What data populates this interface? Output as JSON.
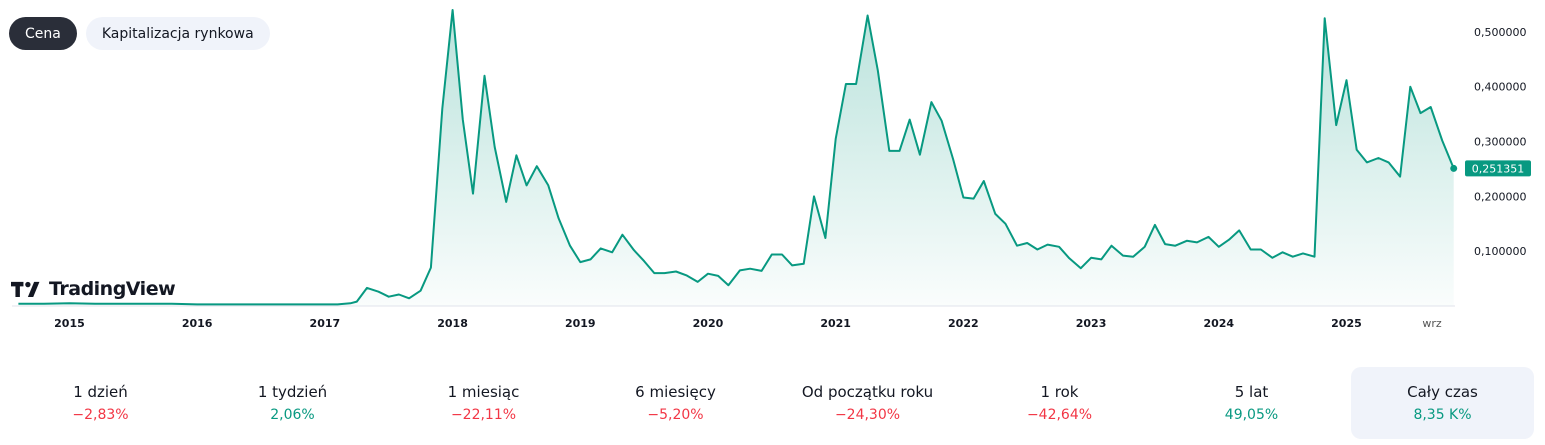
{
  "tabs": [
    {
      "label": "Cena",
      "active": true
    },
    {
      "label": "Kapitalizacja rynkowa",
      "active": false
    }
  ],
  "logo": {
    "text": "TradingView",
    "icon": "tradingview-logo-icon"
  },
  "colors": {
    "line": "#089981",
    "negative": "#f23645",
    "positive": "#089981",
    "price_badge": "#089981"
  },
  "chart_data": {
    "type": "area",
    "x_ticks": [
      "2015",
      "2016",
      "2017",
      "2018",
      "2019",
      "2020",
      "2021",
      "2022",
      "2023",
      "2024",
      "2025",
      "wrz"
    ],
    "y_ticks": [
      "0,100000",
      "0,200000",
      "0,300000",
      "0,400000",
      "0,500000"
    ],
    "ylim": [
      0,
      0.54
    ],
    "xlim": [
      2014.55,
      2025.85
    ],
    "current_value_label": "0,251351",
    "grid": false,
    "points": [
      [
        2014.6,
        0.004
      ],
      [
        2014.8,
        0.004
      ],
      [
        2015.0,
        0.005
      ],
      [
        2015.2,
        0.004
      ],
      [
        2015.5,
        0.004
      ],
      [
        2015.8,
        0.004
      ],
      [
        2016.0,
        0.003
      ],
      [
        2016.3,
        0.003
      ],
      [
        2016.6,
        0.003
      ],
      [
        2016.9,
        0.003
      ],
      [
        2017.1,
        0.003
      ],
      [
        2017.2,
        0.005
      ],
      [
        2017.25,
        0.008
      ],
      [
        2017.33,
        0.033
      ],
      [
        2017.42,
        0.026
      ],
      [
        2017.5,
        0.017
      ],
      [
        2017.58,
        0.021
      ],
      [
        2017.66,
        0.014
      ],
      [
        2017.75,
        0.028
      ],
      [
        2017.83,
        0.07
      ],
      [
        2017.92,
        0.36
      ],
      [
        2018.0,
        0.54
      ],
      [
        2018.08,
        0.34
      ],
      [
        2018.16,
        0.205
      ],
      [
        2018.25,
        0.42
      ],
      [
        2018.33,
        0.29
      ],
      [
        2018.42,
        0.19
      ],
      [
        2018.5,
        0.275
      ],
      [
        2018.58,
        0.22
      ],
      [
        2018.66,
        0.255
      ],
      [
        2018.75,
        0.22
      ],
      [
        2018.83,
        0.16
      ],
      [
        2018.92,
        0.11
      ],
      [
        2019.0,
        0.08
      ],
      [
        2019.08,
        0.085
      ],
      [
        2019.16,
        0.105
      ],
      [
        2019.25,
        0.098
      ],
      [
        2019.33,
        0.13
      ],
      [
        2019.42,
        0.102
      ],
      [
        2019.5,
        0.082
      ],
      [
        2019.58,
        0.06
      ],
      [
        2019.66,
        0.06
      ],
      [
        2019.75,
        0.063
      ],
      [
        2019.83,
        0.056
      ],
      [
        2019.92,
        0.044
      ],
      [
        2020.0,
        0.059
      ],
      [
        2020.08,
        0.055
      ],
      [
        2020.16,
        0.038
      ],
      [
        2020.25,
        0.065
      ],
      [
        2020.33,
        0.068
      ],
      [
        2020.42,
        0.064
      ],
      [
        2020.5,
        0.094
      ],
      [
        2020.58,
        0.094
      ],
      [
        2020.66,
        0.074
      ],
      [
        2020.75,
        0.077
      ],
      [
        2020.83,
        0.2
      ],
      [
        2020.92,
        0.124
      ],
      [
        2021.0,
        0.305
      ],
      [
        2021.08,
        0.405
      ],
      [
        2021.16,
        0.405
      ],
      [
        2021.25,
        0.53
      ],
      [
        2021.33,
        0.43
      ],
      [
        2021.42,
        0.283
      ],
      [
        2021.5,
        0.283
      ],
      [
        2021.58,
        0.34
      ],
      [
        2021.66,
        0.276
      ],
      [
        2021.75,
        0.372
      ],
      [
        2021.83,
        0.338
      ],
      [
        2021.92,
        0.268
      ],
      [
        2022.0,
        0.198
      ],
      [
        2022.08,
        0.196
      ],
      [
        2022.16,
        0.228
      ],
      [
        2022.25,
        0.168
      ],
      [
        2022.33,
        0.15
      ],
      [
        2022.42,
        0.11
      ],
      [
        2022.5,
        0.115
      ],
      [
        2022.58,
        0.103
      ],
      [
        2022.66,
        0.112
      ],
      [
        2022.75,
        0.108
      ],
      [
        2022.83,
        0.087
      ],
      [
        2022.92,
        0.069
      ],
      [
        2023.0,
        0.088
      ],
      [
        2023.08,
        0.085
      ],
      [
        2023.16,
        0.11
      ],
      [
        2023.25,
        0.092
      ],
      [
        2023.33,
        0.09
      ],
      [
        2023.42,
        0.108
      ],
      [
        2023.5,
        0.148
      ],
      [
        2023.58,
        0.113
      ],
      [
        2023.66,
        0.11
      ],
      [
        2023.75,
        0.119
      ],
      [
        2023.83,
        0.116
      ],
      [
        2023.92,
        0.126
      ],
      [
        2024.0,
        0.108
      ],
      [
        2024.08,
        0.121
      ],
      [
        2024.16,
        0.138
      ],
      [
        2024.25,
        0.103
      ],
      [
        2024.33,
        0.103
      ],
      [
        2024.42,
        0.088
      ],
      [
        2024.5,
        0.098
      ],
      [
        2024.58,
        0.09
      ],
      [
        2024.66,
        0.096
      ],
      [
        2024.75,
        0.09
      ],
      [
        2024.83,
        0.525
      ],
      [
        2024.92,
        0.33
      ],
      [
        2025.0,
        0.412
      ],
      [
        2025.08,
        0.285
      ],
      [
        2025.16,
        0.262
      ],
      [
        2025.25,
        0.27
      ],
      [
        2025.33,
        0.262
      ],
      [
        2025.42,
        0.236
      ],
      [
        2025.5,
        0.4
      ],
      [
        2025.58,
        0.352
      ],
      [
        2025.66,
        0.363
      ],
      [
        2025.75,
        0.302
      ],
      [
        2025.84,
        0.251
      ]
    ]
  },
  "periods": [
    {
      "label": "1 dzień",
      "value": "−2,83%",
      "sign": "neg"
    },
    {
      "label": "1 tydzień",
      "value": "2,06%",
      "sign": "pos"
    },
    {
      "label": "1 miesiąc",
      "value": "−22,11%",
      "sign": "neg"
    },
    {
      "label": "6 miesięcy",
      "value": "−5,20%",
      "sign": "neg"
    },
    {
      "label": "Od początku roku",
      "value": "−24,30%",
      "sign": "neg"
    },
    {
      "label": "1 rok",
      "value": "−42,64%",
      "sign": "neg"
    },
    {
      "label": "5 lat",
      "value": "49,05%",
      "sign": "pos"
    },
    {
      "label": "Cały czas",
      "value": "8,35 K%",
      "sign": "pos",
      "active": true
    }
  ]
}
